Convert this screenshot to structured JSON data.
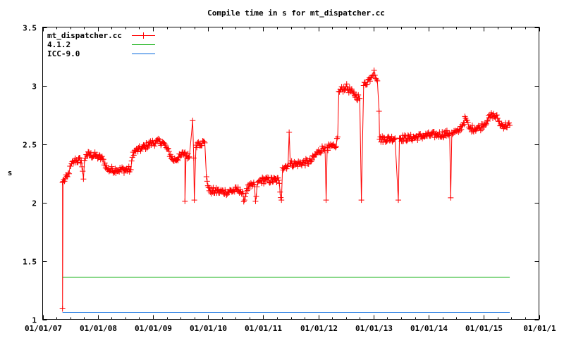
{
  "chart_data": {
    "type": "line",
    "title": "Compile time in s for mt_dispatcher.cc",
    "xlabel": "",
    "ylabel": "s",
    "xlim": [
      2007,
      2016
    ],
    "ylim": [
      1,
      3.5
    ],
    "grid": false,
    "legend_position": "top-left",
    "x_ticks": [
      {
        "value": 2007,
        "label": "01/01/07"
      },
      {
        "value": 2008,
        "label": "01/01/08"
      },
      {
        "value": 2009,
        "label": "01/01/09"
      },
      {
        "value": 2010,
        "label": "01/01/10"
      },
      {
        "value": 2011,
        "label": "01/01/11"
      },
      {
        "value": 2012,
        "label": "01/01/12"
      },
      {
        "value": 2013,
        "label": "01/01/13"
      },
      {
        "value": 2014,
        "label": "01/01/14"
      },
      {
        "value": 2015,
        "label": "01/01/15"
      },
      {
        "value": 2016,
        "label": "01/01/1"
      }
    ],
    "y_ticks": [
      {
        "value": 1,
        "label": "1"
      },
      {
        "value": 1.5,
        "label": "1.5"
      },
      {
        "value": 2,
        "label": "2"
      },
      {
        "value": 2.5,
        "label": "2.5"
      },
      {
        "value": 3,
        "label": "3"
      },
      {
        "value": 3.5,
        "label": "3.5"
      }
    ],
    "series": [
      {
        "name": "mt_dispatcher.cc",
        "color": "#ff0000",
        "style": "linespoints",
        "points": [
          [
            2007.36,
            2.17
          ],
          [
            2007.36,
            1.09
          ],
          [
            2007.37,
            2.18
          ],
          [
            2007.45,
            2.22
          ],
          [
            2007.51,
            2.31
          ],
          [
            2007.58,
            2.36
          ],
          [
            2007.7,
            2.36
          ],
          [
            2007.74,
            2.2
          ],
          [
            2007.76,
            2.36
          ],
          [
            2007.79,
            2.41
          ],
          [
            2007.96,
            2.4
          ],
          [
            2008.09,
            2.37
          ],
          [
            2008.18,
            2.28
          ],
          [
            2008.34,
            2.28
          ],
          [
            2008.6,
            2.28
          ],
          [
            2008.64,
            2.43
          ],
          [
            2008.79,
            2.46
          ],
          [
            2008.98,
            2.51
          ],
          [
            2009.17,
            2.52
          ],
          [
            2009.24,
            2.47
          ],
          [
            2009.37,
            2.36
          ],
          [
            2009.49,
            2.39
          ],
          [
            2009.58,
            2.43
          ],
          [
            2009.58,
            2.01
          ],
          [
            2009.6,
            2.4
          ],
          [
            2009.66,
            2.39
          ],
          [
            2009.72,
            2.7
          ],
          [
            2009.74,
            2.38
          ],
          [
            2009.75,
            2.02
          ],
          [
            2009.78,
            2.49
          ],
          [
            2009.81,
            2.51
          ],
          [
            2009.94,
            2.51
          ],
          [
            2009.97,
            2.22
          ],
          [
            2010.02,
            2.1
          ],
          [
            2010.32,
            2.09
          ],
          [
            2010.58,
            2.11
          ],
          [
            2010.66,
            2.02
          ],
          [
            2010.7,
            2.12
          ],
          [
            2010.84,
            2.15
          ],
          [
            2010.86,
            2.01
          ],
          [
            2010.9,
            2.17
          ],
          [
            2010.96,
            2.19
          ],
          [
            2011.28,
            2.19
          ],
          [
            2011.33,
            2.02
          ],
          [
            2011.35,
            2.3
          ],
          [
            2011.45,
            2.32
          ],
          [
            2011.47,
            2.6
          ],
          [
            2011.49,
            2.33
          ],
          [
            2011.6,
            2.33
          ],
          [
            2011.86,
            2.35
          ],
          [
            2011.99,
            2.43
          ],
          [
            2012.12,
            2.48
          ],
          [
            2012.14,
            2.02
          ],
          [
            2012.16,
            2.47
          ],
          [
            2012.31,
            2.47
          ],
          [
            2012.35,
            2.56
          ],
          [
            2012.37,
            2.95
          ],
          [
            2012.5,
            2.99
          ],
          [
            2012.63,
            2.93
          ],
          [
            2012.75,
            2.89
          ],
          [
            2012.78,
            2.02
          ],
          [
            2012.82,
            3.0
          ],
          [
            2012.95,
            3.07
          ],
          [
            2013.01,
            3.13
          ],
          [
            2013.07,
            3.04
          ],
          [
            2013.1,
            2.78
          ],
          [
            2013.11,
            2.54
          ],
          [
            2013.39,
            2.55
          ],
          [
            2013.45,
            2.02
          ],
          [
            2013.47,
            2.55
          ],
          [
            2013.65,
            2.55
          ],
          [
            2013.91,
            2.57
          ],
          [
            2014.16,
            2.58
          ],
          [
            2014.38,
            2.59
          ],
          [
            2014.4,
            2.04
          ],
          [
            2014.42,
            2.6
          ],
          [
            2014.54,
            2.6
          ],
          [
            2014.67,
            2.72
          ],
          [
            2014.74,
            2.63
          ],
          [
            2014.93,
            2.64
          ],
          [
            2015.06,
            2.7
          ],
          [
            2015.15,
            2.75
          ],
          [
            2015.25,
            2.72
          ],
          [
            2015.31,
            2.66
          ],
          [
            2015.47,
            2.66
          ]
        ]
      },
      {
        "name": "4.1.2",
        "color": "#00aa00",
        "style": "line",
        "points": [
          [
            2007.36,
            1.36
          ],
          [
            2015.47,
            1.36
          ]
        ]
      },
      {
        "name": "ICC-9.0",
        "color": "#0066dd",
        "style": "line",
        "points": [
          [
            2007.36,
            1.06
          ],
          [
            2015.47,
            1.06
          ]
        ]
      }
    ]
  }
}
